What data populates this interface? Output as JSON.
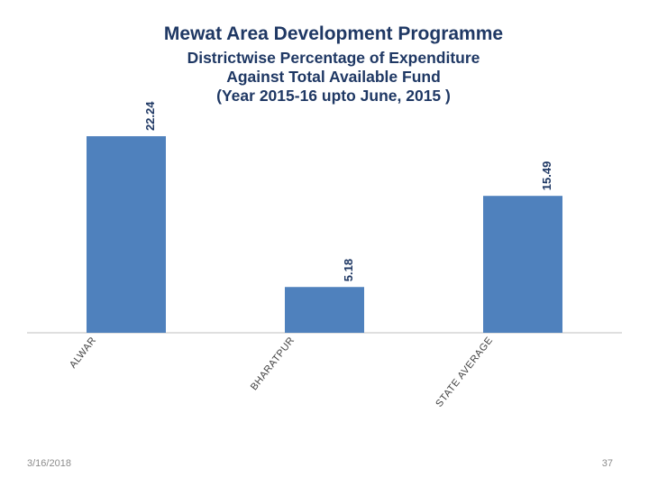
{
  "slide": {
    "date": "3/16/2018",
    "page_number": "37"
  },
  "chart_data": {
    "type": "bar",
    "title": "Mewat Area Development Programme",
    "subtitle": "Districtwise Percentage of Expenditure\nAgainst Total Available Fund\n(Year 2015-16 upto June, 2015 )",
    "categories": [
      "ALWAR",
      "BHARATPUR",
      "STATE AVERAGE"
    ],
    "values": [
      22.24,
      5.18,
      15.49
    ],
    "value_labels": [
      "22.24",
      "5.18",
      "15.49"
    ],
    "bar_color": "#4f81bd",
    "ylim": [
      0,
      25
    ],
    "grid": false,
    "legend": "none"
  }
}
